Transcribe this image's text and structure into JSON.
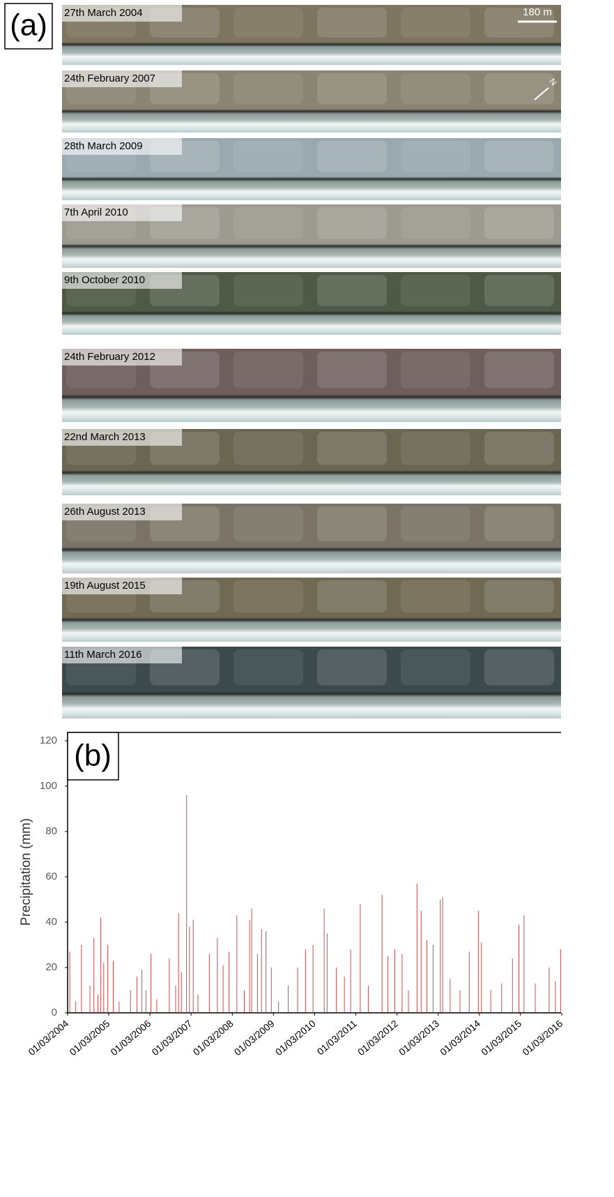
{
  "figure": {
    "panel_label": "(a)",
    "scale_bar": "180 m",
    "north": "N",
    "images": [
      "27th March 2004",
      "24th February 2007",
      "28th March 2009",
      "7th April 2010",
      "9th October 2010",
      "24th February 2012",
      "22nd March 2013",
      "26th August 2013",
      "19th August 2015",
      "11th March 2016"
    ]
  },
  "chart_data": {
    "type": "bar",
    "panel_label": "(b)",
    "ylabel": "Precipitation (mm)",
    "color": "#c00000",
    "x": [
      "2004-03-20",
      "2004-05-10",
      "2004-07-02",
      "2004-09-15",
      "2004-10-20",
      "2004-11-25",
      "2004-12-20",
      "2005-01-15",
      "2005-02-20",
      "2005-04-10",
      "2005-06-01",
      "2005-09-10",
      "2005-11-05",
      "2005-12-20",
      "2006-01-25",
      "2006-03-10",
      "2006-05-01",
      "2006-08-20",
      "2006-10-15",
      "2006-11-10",
      "2006-12-05",
      "2007-01-20",
      "2007-02-15",
      "2007-03-20",
      "2007-05-01",
      "2007-08-10",
      "2007-10-20",
      "2007-12-10",
      "2008-02-01",
      "2008-04-10",
      "2008-06-15",
      "2008-08-01",
      "2008-08-20",
      "2008-10-10",
      "2008-11-15",
      "2008-12-25",
      "2009-02-10",
      "2009-04-15",
      "2009-07-10",
      "2009-10-01",
      "2009-12-10",
      "2010-02-15",
      "2010-05-25",
      "2010-06-20",
      "2010-09-10",
      "2010-11-20",
      "2011-01-15",
      "2011-04-10",
      "2011-06-20",
      "2011-10-20",
      "2011-12-10",
      "2012-02-10",
      "2012-04-15",
      "2012-06-10",
      "2012-08-25",
      "2012-10-01",
      "2012-11-20",
      "2013-01-15",
      "2013-03-20",
      "2013-04-10",
      "2013-06-15",
      "2013-09-10",
      "2013-12-01",
      "2014-02-20",
      "2014-03-20",
      "2014-06-10",
      "2014-09-15",
      "2014-12-20",
      "2015-02-15",
      "2015-04-01",
      "2015-07-10",
      "2015-11-10",
      "2016-01-05",
      "2016-02-20"
    ],
    "values": [
      27,
      5,
      30,
      12,
      33,
      8,
      42,
      22,
      30,
      23,
      5,
      10,
      16,
      19,
      10,
      26,
      6,
      24,
      12,
      44,
      18,
      96,
      38,
      41,
      8,
      26,
      33,
      21,
      27,
      43,
      10,
      41,
      46,
      26,
      37,
      36,
      20,
      5,
      12,
      20,
      28,
      30,
      46,
      35,
      20,
      16,
      28,
      48,
      12,
      52,
      25,
      28,
      26,
      10,
      57,
      45,
      32,
      30,
      50,
      51,
      15,
      10,
      27,
      45,
      31,
      10,
      13,
      24,
      39,
      43,
      13,
      20,
      14,
      28
    ],
    "xlim": [
      "2004-03-01",
      "2016-03-01"
    ],
    "xticks": [
      {
        "value": "2004-03-01",
        "label": "01/03/2004"
      },
      {
        "value": "2005-03-01",
        "label": "01/03/2005"
      },
      {
        "value": "2006-03-01",
        "label": "01/03/2006"
      },
      {
        "value": "2007-03-01",
        "label": "01/03/2007"
      },
      {
        "value": "2008-03-01",
        "label": "01/03/2008"
      },
      {
        "value": "2009-03-01",
        "label": "01/03/2009"
      },
      {
        "value": "2010-03-01",
        "label": "01/03/2010"
      },
      {
        "value": "2011-03-01",
        "label": "01/03/2011"
      },
      {
        "value": "2012-03-01",
        "label": "01/03/2012"
      },
      {
        "value": "2013-03-01",
        "label": "01/03/2013"
      },
      {
        "value": "2014-03-01",
        "label": "01/03/2014"
      },
      {
        "value": "2015-03-01",
        "label": "01/03/2015"
      },
      {
        "value": "2016-03-01",
        "label": "01/03/2016"
      }
    ],
    "ylim": [
      0,
      120
    ],
    "yticks": [
      0,
      20,
      40,
      60,
      80,
      100,
      120
    ]
  }
}
